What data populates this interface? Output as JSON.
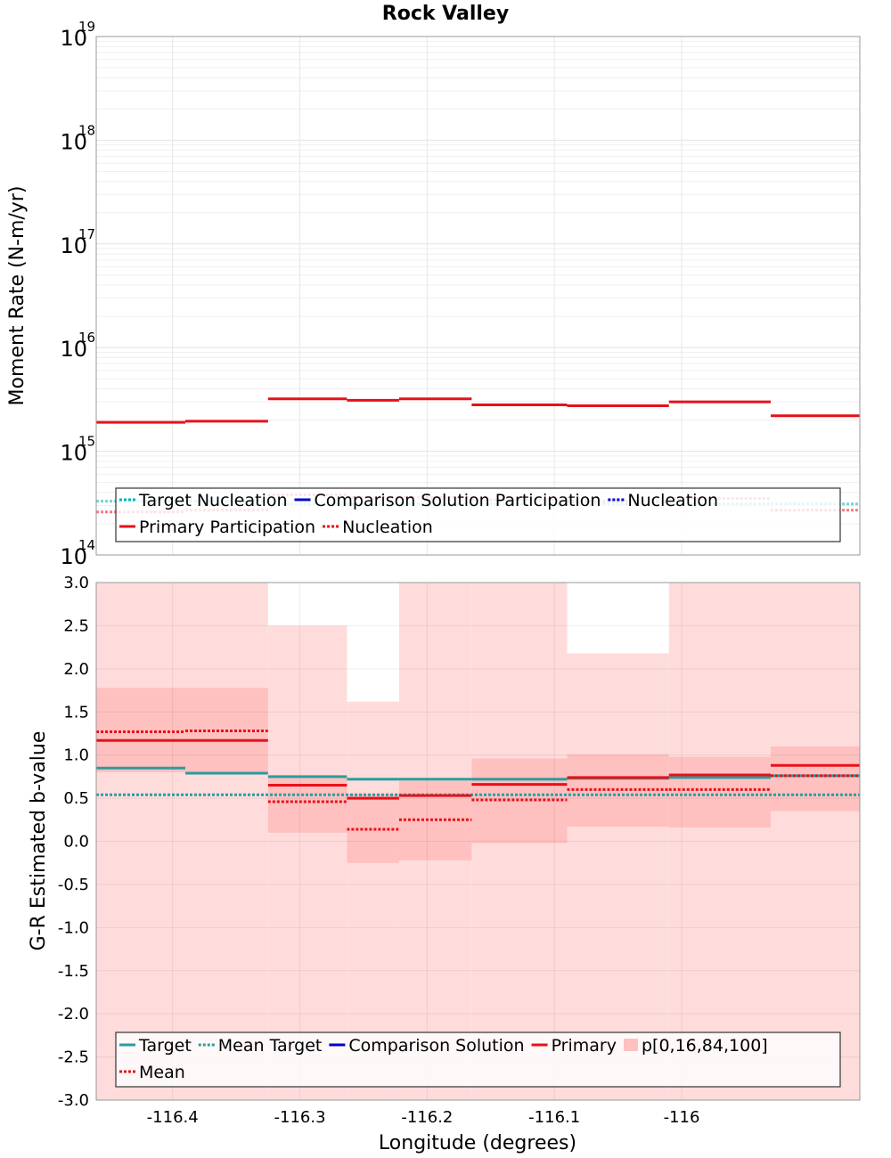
{
  "chart_data": [
    {
      "type": "line",
      "title": "Rock Valley",
      "ylabel": "Moment Rate (N-m/yr)",
      "xlabel": "",
      "yscale": "log",
      "ylim": [
        100000000000000.0,
        1e+19
      ],
      "xlim": [
        -116.46,
        -115.86
      ],
      "grid": true,
      "y_ticks": [
        {
          "base": "10",
          "exp": "14",
          "value": 100000000000000.0
        },
        {
          "base": "10",
          "exp": "15",
          "value": 1000000000000000.0
        },
        {
          "base": "10",
          "exp": "16",
          "value": 1e+16
        },
        {
          "base": "10",
          "exp": "17",
          "value": 1e+17
        },
        {
          "base": "10",
          "exp": "18",
          "value": 1e+18
        },
        {
          "base": "10",
          "exp": "19",
          "value": 1e+19
        }
      ],
      "series": [
        {
          "name": "Target Nucleation",
          "style": "dotted",
          "color": "#00b0b0",
          "segments": [
            {
              "x0": -116.46,
              "x1": -116.39,
              "y": 330000000000000.0
            },
            {
              "x0": -116.39,
              "x1": -116.325,
              "y": 330000000000000.0
            },
            {
              "x0": -116.325,
              "x1": -116.263,
              "y": 310000000000000.0
            },
            {
              "x0": -116.263,
              "x1": -116.222,
              "y": 310000000000000.0
            },
            {
              "x0": -116.222,
              "x1": -116.165,
              "y": 310000000000000.0
            },
            {
              "x0": -116.165,
              "x1": -116.09,
              "y": 310000000000000.0
            },
            {
              "x0": -116.09,
              "x1": -116.01,
              "y": 310000000000000.0
            },
            {
              "x0": -116.01,
              "x1": -115.93,
              "y": 310000000000000.0
            },
            {
              "x0": -115.93,
              "x1": -115.86,
              "y": 310000000000000.0
            }
          ]
        },
        {
          "name": "Comparison Solution Participation",
          "style": "solid",
          "color": "#0000cc",
          "segments": []
        },
        {
          "name": "Nucleation",
          "style": "dotted",
          "color": "#0000cc",
          "segments": []
        },
        {
          "name": "Primary Participation",
          "style": "solid",
          "color": "#e8101a",
          "segments": [
            {
              "x0": -116.46,
              "x1": -116.39,
              "y": 1900000000000000.0
            },
            {
              "x0": -116.39,
              "x1": -116.325,
              "y": 1950000000000000.0
            },
            {
              "x0": -116.325,
              "x1": -116.263,
              "y": 3200000000000000.0
            },
            {
              "x0": -116.263,
              "x1": -116.222,
              "y": 3100000000000000.0
            },
            {
              "x0": -116.222,
              "x1": -116.165,
              "y": 3200000000000000.0
            },
            {
              "x0": -116.165,
              "x1": -116.09,
              "y": 2800000000000000.0
            },
            {
              "x0": -116.09,
              "x1": -116.01,
              "y": 2750000000000000.0
            },
            {
              "x0": -116.01,
              "x1": -115.93,
              "y": 3000000000000000.0
            },
            {
              "x0": -115.93,
              "x1": -115.86,
              "y": 2200000000000000.0
            }
          ]
        },
        {
          "name": "Nucleation",
          "style": "dotted",
          "color": "#e8101a",
          "segments": [
            {
              "x0": -116.46,
              "x1": -116.39,
              "y": 260000000000000.0
            },
            {
              "x0": -116.39,
              "x1": -116.325,
              "y": 270000000000000.0
            },
            {
              "x0": -116.325,
              "x1": -116.263,
              "y": 380000000000000.0
            },
            {
              "x0": -116.263,
              "x1": -116.222,
              "y": 360000000000000.0
            },
            {
              "x0": -116.222,
              "x1": -116.165,
              "y": 360000000000000.0
            },
            {
              "x0": -116.165,
              "x1": -116.09,
              "y": 340000000000000.0
            },
            {
              "x0": -116.09,
              "x1": -116.01,
              "y": 330000000000000.0
            },
            {
              "x0": -116.01,
              "x1": -115.93,
              "y": 350000000000000.0
            },
            {
              "x0": -115.93,
              "x1": -115.86,
              "y": 270000000000000.0
            }
          ]
        }
      ],
      "legend": {
        "placement": "bottom",
        "rows": [
          [
            {
              "label": "Target Nucleation",
              "style": "dotted",
              "color": "#00b0b0"
            },
            {
              "label": "Comparison Solution Participation",
              "style": "solid",
              "color": "#0000cc"
            },
            {
              "label": "Nucleation",
              "style": "dotted",
              "color": "#0000cc"
            }
          ],
          [
            {
              "label": "Primary Participation",
              "style": "solid",
              "color": "#e8101a"
            },
            {
              "label": "Nucleation",
              "style": "dotted",
              "color": "#e8101a"
            }
          ]
        ]
      }
    },
    {
      "type": "line",
      "title": "",
      "ylabel": "G-R Estimated b-value",
      "xlabel": "Longitude (degrees)",
      "ylim": [
        -3.0,
        3.0
      ],
      "xlim": [
        -116.46,
        -115.86
      ],
      "grid": true,
      "x_ticks": [
        {
          "label": "-116.4",
          "value": -116.4
        },
        {
          "label": "-116.3",
          "value": -116.3
        },
        {
          "label": "-116.2",
          "value": -116.2
        },
        {
          "label": "-116.1",
          "value": -116.1
        },
        {
          "label": "-116",
          "value": -116.0
        }
      ],
      "y_ticks": [
        {
          "label": "3.0",
          "value": 3.0
        },
        {
          "label": "2.5",
          "value": 2.5
        },
        {
          "label": "2.0",
          "value": 2.0
        },
        {
          "label": "1.5",
          "value": 1.5
        },
        {
          "label": "1.0",
          "value": 1.0
        },
        {
          "label": "0.5",
          "value": 0.5
        },
        {
          "label": "0.0",
          "value": 0.0
        },
        {
          "label": "-0.5",
          "value": -0.5
        },
        {
          "label": "-1.0",
          "value": -1.0
        },
        {
          "label": "-1.5",
          "value": -1.5
        },
        {
          "label": "-2.0",
          "value": -2.0
        },
        {
          "label": "-2.5",
          "value": -2.5
        },
        {
          "label": "-3.0",
          "value": -3.0
        }
      ],
      "bands": [
        {
          "x0": -116.46,
          "x1": -116.39,
          "p0": -3.0,
          "p16": 0.8,
          "p84": 1.78,
          "p100": 3.0
        },
        {
          "x0": -116.39,
          "x1": -116.325,
          "p0": -3.0,
          "p16": 0.8,
          "p84": 1.78,
          "p100": 3.0
        },
        {
          "x0": -116.325,
          "x1": -116.263,
          "p0": -3.0,
          "p16": 0.1,
          "p84": 0.75,
          "p100": 2.5
        },
        {
          "x0": -116.263,
          "x1": -116.222,
          "p0": -3.0,
          "p16": -0.25,
          "p84": 0.55,
          "p100": 1.62
        },
        {
          "x0": -116.222,
          "x1": -116.165,
          "p0": -3.0,
          "p16": -0.22,
          "p84": 0.7,
          "p100": 3.0
        },
        {
          "x0": -116.165,
          "x1": -116.09,
          "p0": -3.0,
          "p16": -0.02,
          "p84": 0.96,
          "p100": 3.0
        },
        {
          "x0": -116.09,
          "x1": -116.01,
          "p0": -3.0,
          "p16": 0.17,
          "p84": 1.01,
          "p100": 2.18
        },
        {
          "x0": -116.01,
          "x1": -115.93,
          "p0": -3.0,
          "p16": 0.16,
          "p84": 0.98,
          "p100": 3.0
        },
        {
          "x0": -115.93,
          "x1": -115.86,
          "p0": -3.0,
          "p16": 0.35,
          "p84": 1.1,
          "p100": 3.0
        }
      ],
      "series": [
        {
          "name": "Target",
          "style": "solid",
          "color": "#2a9d9d",
          "segments": [
            {
              "x0": -116.46,
              "x1": -116.39,
              "y": 0.85
            },
            {
              "x0": -116.39,
              "x1": -116.325,
              "y": 0.79
            },
            {
              "x0": -116.325,
              "x1": -116.263,
              "y": 0.75
            },
            {
              "x0": -116.263,
              "x1": -116.222,
              "y": 0.72
            },
            {
              "x0": -116.222,
              "x1": -116.165,
              "y": 0.72
            },
            {
              "x0": -116.165,
              "x1": -116.09,
              "y": 0.72
            },
            {
              "x0": -116.09,
              "x1": -116.01,
              "y": 0.73
            },
            {
              "x0": -116.01,
              "x1": -115.93,
              "y": 0.74
            },
            {
              "x0": -115.93,
              "x1": -115.86,
              "y": 0.76
            }
          ]
        },
        {
          "name": "Mean Target",
          "style": "dotted",
          "color": "#2a9d9d",
          "segments": [
            {
              "x0": -116.46,
              "x1": -115.86,
              "y": 0.54
            }
          ]
        },
        {
          "name": "Comparison Solution",
          "style": "solid",
          "color": "#0000cc",
          "segments": []
        },
        {
          "name": "Primary",
          "style": "solid",
          "color": "#e8101a",
          "segments": [
            {
              "x0": -116.46,
              "x1": -116.39,
              "y": 1.17
            },
            {
              "x0": -116.39,
              "x1": -116.325,
              "y": 1.17
            },
            {
              "x0": -116.325,
              "x1": -116.263,
              "y": 0.65
            },
            {
              "x0": -116.263,
              "x1": -116.222,
              "y": 0.5
            },
            {
              "x0": -116.222,
              "x1": -116.165,
              "y": 0.53
            },
            {
              "x0": -116.165,
              "x1": -116.09,
              "y": 0.66
            },
            {
              "x0": -116.09,
              "x1": -116.01,
              "y": 0.74
            },
            {
              "x0": -116.01,
              "x1": -115.93,
              "y": 0.77
            },
            {
              "x0": -115.93,
              "x1": -115.86,
              "y": 0.88
            }
          ]
        },
        {
          "name": "Mean",
          "style": "dotted",
          "color": "#e8101a",
          "segments": [
            {
              "x0": -116.46,
              "x1": -116.39,
              "y": 1.27
            },
            {
              "x0": -116.39,
              "x1": -116.325,
              "y": 1.28
            },
            {
              "x0": -116.325,
              "x1": -116.263,
              "y": 0.46
            },
            {
              "x0": -116.263,
              "x1": -116.222,
              "y": 0.14
            },
            {
              "x0": -116.222,
              "x1": -116.165,
              "y": 0.25
            },
            {
              "x0": -116.165,
              "x1": -116.09,
              "y": 0.48
            },
            {
              "x0": -116.09,
              "x1": -116.01,
              "y": 0.6
            },
            {
              "x0": -116.01,
              "x1": -115.93,
              "y": 0.6
            },
            {
              "x0": -115.93,
              "x1": -115.86,
              "y": 0.76
            }
          ]
        }
      ],
      "legend": {
        "placement": "bottom",
        "rows": [
          [
            {
              "label": "Target",
              "style": "solid",
              "color": "#2a9d9d"
            },
            {
              "label": "Mean Target",
              "style": "dotted",
              "color": "#2a9d9d"
            },
            {
              "label": "Comparison Solution",
              "style": "solid",
              "color": "#0000cc"
            },
            {
              "label": "Primary",
              "style": "solid",
              "color": "#e8101a"
            },
            {
              "label": "p[0,16,84,100]",
              "style": "band",
              "color": "#ffc0c0"
            }
          ],
          [
            {
              "label": "Mean",
              "style": "dotted",
              "color": "#e8101a"
            }
          ]
        ]
      }
    }
  ]
}
